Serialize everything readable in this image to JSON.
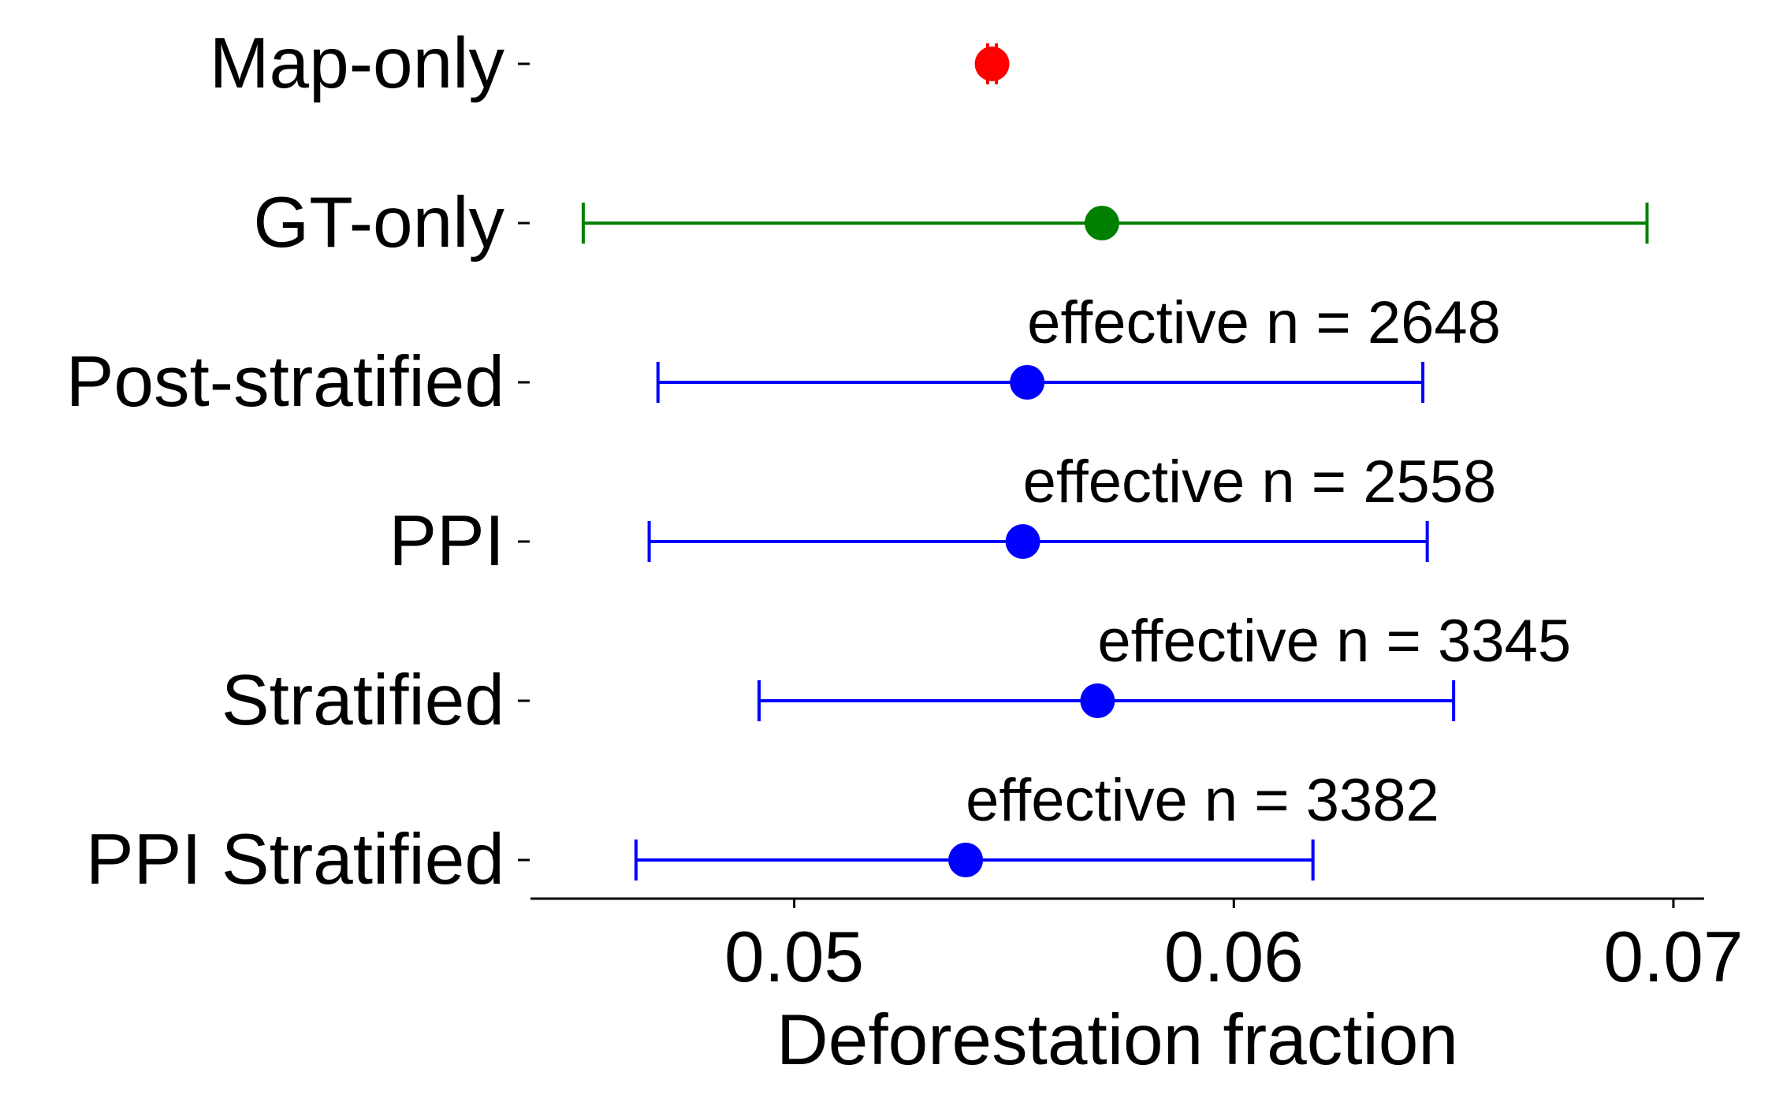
{
  "chart_data": {
    "type": "scatter",
    "orientation": "horizontal",
    "xlabel": "Deforestation fraction",
    "xlim": [
      0.044,
      0.0707
    ],
    "xticks": [
      0.05,
      0.06,
      0.07
    ],
    "xtick_labels": [
      "0.05",
      "0.06",
      "0.07"
    ],
    "grid": false,
    "rows": [
      {
        "label": "Map-only",
        "estimate": 0.0545,
        "ci": [
          0.0544,
          0.0546
        ],
        "color": "#ff0000",
        "annotation": ""
      },
      {
        "label": "GT-only",
        "estimate": 0.057,
        "ci": [
          0.0452,
          0.0694
        ],
        "color": "#008000",
        "annotation": ""
      },
      {
        "label": "Post-stratified",
        "estimate": 0.0553,
        "ci": [
          0.0469,
          0.0643
        ],
        "color": "#0000ff",
        "annotation": "effective n = 2648"
      },
      {
        "label": "PPI",
        "estimate": 0.0552,
        "ci": [
          0.0467,
          0.0644
        ],
        "color": "#0000ff",
        "annotation": "effective n = 2558"
      },
      {
        "label": "Stratified",
        "estimate": 0.0569,
        "ci": [
          0.0492,
          0.065
        ],
        "color": "#0000ff",
        "annotation": "effective n = 3345"
      },
      {
        "label": "PPI Stratified",
        "estimate": 0.0539,
        "ci": [
          0.0464,
          0.0618
        ],
        "color": "#0000ff",
        "annotation": "effective n = 3382"
      }
    ]
  }
}
